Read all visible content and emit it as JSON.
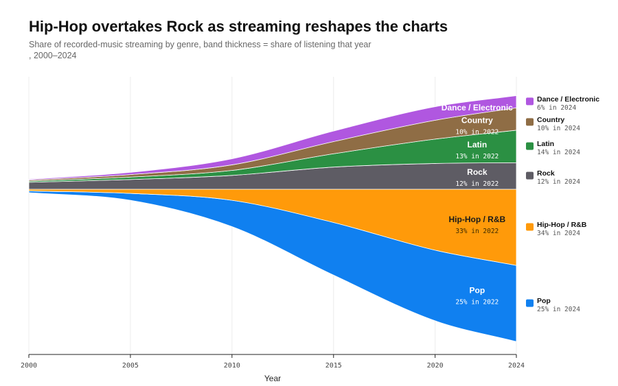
{
  "chart_data": {
    "type": "area",
    "title": "Hip-Hop overtakes Rock as streaming reshapes the charts",
    "subtitle": "Share of recorded-music streaming by genre, band thickness = share of listening that year\n, 2000–2024",
    "xlabel": "Year",
    "x": [
      2000,
      2005,
      2010,
      2015,
      2020,
      2024
    ],
    "x_ticks": [
      "2000",
      "2005",
      "2010",
      "2015",
      "2020",
      "2024"
    ],
    "grid": "vertical",
    "legend_position": "right",
    "series": [
      {
        "name": "Pop",
        "color": "#1080f0",
        "values": [
          0.6,
          2.5,
          9.5,
          19,
          25.5,
          27.5
        ],
        "band_label": "Pop",
        "band_sublabel": "25% in 2022",
        "legend_sublabel": "25% in 2024"
      },
      {
        "name": "Hip-Hop / R&B",
        "color": "#ff9a0a",
        "values": [
          0.6,
          1.5,
          4,
          12,
          22,
          27.5
        ],
        "band_label": "Hip-Hop / R&B",
        "band_sublabel": "33% in 2022",
        "legend_sublabel": "34% in 2024"
      },
      {
        "name": "Rock",
        "color": "#5e5c64",
        "values": [
          2.5,
          3.5,
          5,
          8,
          9.3,
          9.6
        ],
        "band_label": "Rock",
        "band_sublabel": "12% in 2022",
        "legend_sublabel": "12% in 2024"
      },
      {
        "name": "Latin",
        "color": "#2b9043",
        "values": [
          0.4,
          0.9,
          1.8,
          4.8,
          8.8,
          11.7
        ],
        "band_label": "Latin",
        "band_sublabel": "13% in 2022",
        "legend_sublabel": "14% in 2024"
      },
      {
        "name": "Country",
        "color": "#8f6d45",
        "values": [
          0.4,
          0.9,
          2,
          4.4,
          6.8,
          8.1
        ],
        "band_label": "Country",
        "band_sublabel": "10% in 2022",
        "legend_sublabel": "10% in 2024"
      },
      {
        "name": "Dance / Electronic",
        "color": "#b057e0",
        "values": [
          0.3,
          0.8,
          2.2,
          3.8,
          4.9,
          4.4
        ],
        "band_label": "Dance / Electronic",
        "band_sublabel": "",
        "legend_sublabel": "6% in 2024"
      }
    ]
  }
}
